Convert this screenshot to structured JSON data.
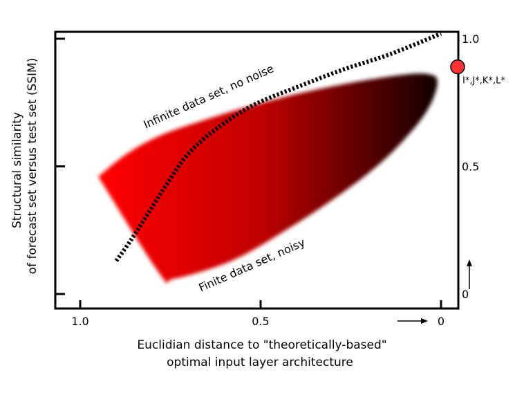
{
  "chart_data": {
    "type": "area",
    "xlabel_line1": "Euclidian distance to \"theoretically-based\"",
    "xlabel_line2": "optimal input layer architecture",
    "ylabel_line1": "Structural similarity",
    "ylabel_line2": "of forecast set versus test set (SSIM)",
    "xlim": [
      1.05,
      0
    ],
    "ylim": [
      0,
      1.02
    ],
    "x_ticks": [
      {
        "value": 1.0,
        "label": "1.0"
      },
      {
        "value": 0.5,
        "label": "0.5"
      },
      {
        "value": 0,
        "label": "0"
      }
    ],
    "y_ticks": [
      {
        "value": 1.0,
        "label": "1.0"
      },
      {
        "value": 0.5,
        "label": "0.5"
      },
      {
        "value": 0,
        "label": "0"
      }
    ],
    "region": {
      "name": "Finite data set, noisy",
      "color_start": "#ff0000",
      "color_end": "#000000",
      "outline": [
        {
          "x": 0.95,
          "y": 0.46
        },
        {
          "x": 0.87,
          "y": 0.55
        },
        {
          "x": 0.78,
          "y": 0.62
        },
        {
          "x": 0.66,
          "y": 0.68
        },
        {
          "x": 0.52,
          "y": 0.74
        },
        {
          "x": 0.38,
          "y": 0.79
        },
        {
          "x": 0.24,
          "y": 0.83
        },
        {
          "x": 0.1,
          "y": 0.86
        },
        {
          "x": 0.03,
          "y": 0.86
        },
        {
          "x": 0.01,
          "y": 0.83
        },
        {
          "x": 0.03,
          "y": 0.74
        },
        {
          "x": 0.08,
          "y": 0.64
        },
        {
          "x": 0.17,
          "y": 0.51
        },
        {
          "x": 0.29,
          "y": 0.38
        },
        {
          "x": 0.43,
          "y": 0.25
        },
        {
          "x": 0.58,
          "y": 0.13
        },
        {
          "x": 0.74,
          "y": 0.06
        },
        {
          "x": 0.78,
          "y": 0.08
        },
        {
          "x": 0.95,
          "y": 0.46
        }
      ]
    },
    "curve": {
      "name": "Infinite data set, no noise",
      "points": [
        {
          "x": 0.9,
          "y": 0.13
        },
        {
          "x": 0.86,
          "y": 0.21
        },
        {
          "x": 0.81,
          "y": 0.32
        },
        {
          "x": 0.76,
          "y": 0.43
        },
        {
          "x": 0.7,
          "y": 0.55
        },
        {
          "x": 0.62,
          "y": 0.65
        },
        {
          "x": 0.52,
          "y": 0.74
        },
        {
          "x": 0.4,
          "y": 0.81
        },
        {
          "x": 0.27,
          "y": 0.88
        },
        {
          "x": 0.14,
          "y": 0.94
        },
        {
          "x": 0.0,
          "y": 1.02
        }
      ]
    },
    "optimum": {
      "x": 0.0,
      "y": 0.86,
      "label": "I*,J*,K*,L*",
      "color": "#ff3333"
    },
    "annotations": [
      {
        "text": "Infinite data set, no noise",
        "x": 0.64,
        "y": 0.76,
        "angle": -24
      },
      {
        "text": "Finite data set, noisy",
        "x": 0.52,
        "y": 0.1,
        "angle": -24
      }
    ],
    "grid": false
  }
}
